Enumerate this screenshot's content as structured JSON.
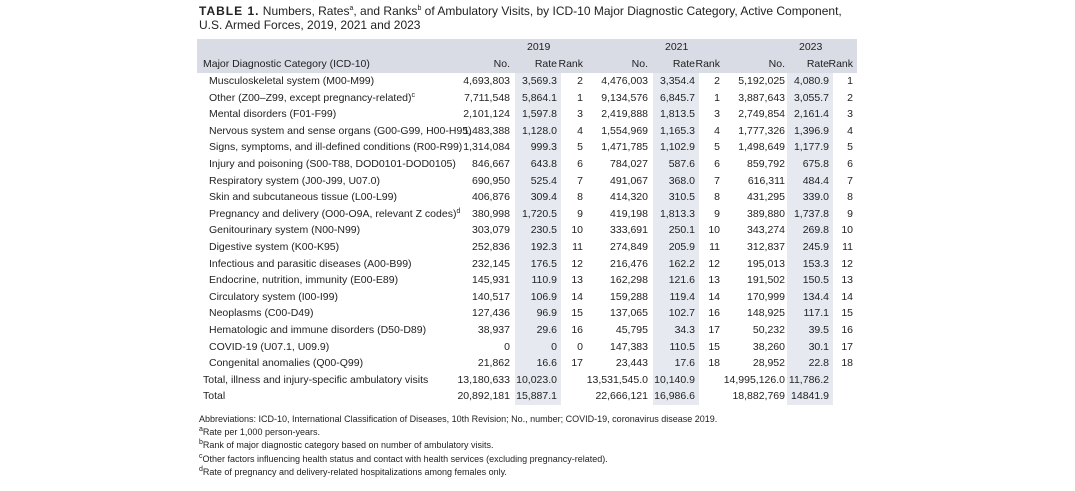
{
  "title": {
    "label": "TABLE 1.",
    "parts": [
      " Numbers, Rates",
      "a",
      ", and Ranks",
      "b",
      " of Ambulatory Visits, by ICD-10 Major Diagnostic Category, Active Component, U.S. Armed Forces, 2019, 2021 and 2023"
    ]
  },
  "table": {
    "category_header": "Major Diagnostic Category (ICD-10)",
    "years": [
      {
        "year": "2019",
        "columns": [
          "No.",
          "Rate",
          "Rank"
        ]
      },
      {
        "year": "2021",
        "columns": [
          "No.",
          "Rate",
          "Rank"
        ]
      },
      {
        "year": "2023",
        "columns": [
          "No.",
          "Rate",
          "Rank"
        ]
      }
    ],
    "rows": [
      {
        "category": "Musculoskeletal system (M00-M99)",
        "values": [
          "4,693,803",
          "3,569.3",
          "2",
          "4,476,003",
          "3,354.4",
          "2",
          "5,192,025",
          "4,080.9",
          "1"
        ]
      },
      {
        "category": "Other (Z00–Z99, except pregnancy-related)",
        "sup": "c",
        "values": [
          "7,711,548",
          "5,864.1",
          "1",
          "9,134,576",
          "6,845.7",
          "1",
          "3,887,643",
          "3,055.7",
          "2"
        ]
      },
      {
        "category": "Mental disorders (F01-F99)",
        "values": [
          "2,101,124",
          "1,597.8",
          "3",
          "2,419,888",
          "1,813.5",
          "3",
          "2,749,854",
          "2,161.4",
          "3"
        ]
      },
      {
        "category": "Nervous system and sense organs (G00-G99, H00-H95)",
        "values": [
          "1,483,388",
          "1,128.0",
          "4",
          "1,554,969",
          "1,165.3",
          "4",
          "1,777,326",
          "1,396.9",
          "4"
        ]
      },
      {
        "category": "Signs, symptoms, and ill-defined conditions (R00-R99)",
        "values": [
          "1,314,084",
          "999.3",
          "5",
          "1,471,785",
          "1,102.9",
          "5",
          "1,498,649",
          "1,177.9",
          "5"
        ]
      },
      {
        "category": "Injury and poisoning (S00-T88, DOD0101-DOD0105)",
        "values": [
          "846,667",
          "643.8",
          "6",
          "784,027",
          "587.6",
          "6",
          "859,792",
          "675.8",
          "6"
        ]
      },
      {
        "category": "Respiratory system (J00-J99, U07.0)",
        "values": [
          "690,950",
          "525.4",
          "7",
          "491,067",
          "368.0",
          "7",
          "616,311",
          "484.4",
          "7"
        ]
      },
      {
        "category": "Skin and subcutaneous tissue (L00-L99)",
        "values": [
          "406,876",
          "309.4",
          "8",
          "414,320",
          "310.5",
          "8",
          "431,295",
          "339.0",
          "8"
        ]
      },
      {
        "category": "Pregnancy and delivery (O00-O9A, relevant Z codes)",
        "sup": "d",
        "values": [
          "380,998",
          "1,720.5",
          "9",
          "419,198",
          "1,813.3",
          "9",
          "389,880",
          "1,737.8",
          "9"
        ]
      },
      {
        "category": "Genitourinary system (N00-N99)",
        "values": [
          "303,079",
          "230.5",
          "10",
          "333,691",
          "250.1",
          "10",
          "343,274",
          "269.8",
          "10"
        ]
      },
      {
        "category": "Digestive system (K00-K95)",
        "values": [
          "252,836",
          "192.3",
          "11",
          "274,849",
          "205.9",
          "11",
          "312,837",
          "245.9",
          "11"
        ]
      },
      {
        "category": "Infectious and parasitic diseases (A00-B99)",
        "values": [
          "232,145",
          "176.5",
          "12",
          "216,476",
          "162.2",
          "12",
          "195,013",
          "153.3",
          "12"
        ]
      },
      {
        "category": "Endocrine, nutrition, immunity (E00-E89)",
        "values": [
          "145,931",
          "110.9",
          "13",
          "162,298",
          "121.6",
          "13",
          "191,502",
          "150.5",
          "13"
        ]
      },
      {
        "category": "Circulatory system (I00-I99)",
        "values": [
          "140,517",
          "106.9",
          "14",
          "159,288",
          "119.4",
          "14",
          "170,999",
          "134.4",
          "14"
        ]
      },
      {
        "category": "Neoplasms (C00-D49)",
        "values": [
          "127,436",
          "96.9",
          "15",
          "137,065",
          "102.7",
          "16",
          "148,925",
          "117.1",
          "15"
        ]
      },
      {
        "category": "Hematologic and immune disorders (D50-D89)",
        "values": [
          "38,937",
          "29.6",
          "16",
          "45,795",
          "34.3",
          "17",
          "50,232",
          "39.5",
          "16"
        ]
      },
      {
        "category": "COVID-19 (U07.1, U09.9)",
        "values": [
          "0",
          "0",
          "0",
          "147,383",
          "110.5",
          "15",
          "38,260",
          "30.1",
          "17"
        ]
      },
      {
        "category": "Congenital anomalies (Q00-Q99)",
        "values": [
          "21,862",
          "16.6",
          "17",
          "23,443",
          "17.6",
          "18",
          "28,952",
          "22.8",
          "18"
        ]
      },
      {
        "category": "Total, illness and injury-specific ambulatory visits",
        "total": true,
        "values": [
          "13,180,633",
          "10,023.0",
          null,
          "13,531,545.0",
          "10,140.9",
          null,
          "14,995,126.0",
          "11,786.2",
          null
        ]
      },
      {
        "category": "Total",
        "total": true,
        "values": [
          "20,892,181",
          "15,887.1",
          null,
          "22,666,121",
          "16,986.6",
          null,
          "18,882,769",
          "14841.9",
          null
        ]
      }
    ]
  },
  "footnotes": [
    {
      "text": "Abbreviations: ICD-10, International Classification of Diseases, 10th Revision; No., number; COVID-19, coronavirus disease 2019."
    },
    {
      "mark": "a",
      "text": "Rate per 1,000 person-years."
    },
    {
      "mark": "b",
      "text": "Rank of major diagnostic category based on number of ambulatory visits."
    },
    {
      "mark": "c",
      "text": "Other factors influencing health status and contact with health services (excluding pregnancy-related)."
    },
    {
      "mark": "d",
      "text": "Rate of pregnancy and delivery-related hospitalizations among females only."
    }
  ]
}
